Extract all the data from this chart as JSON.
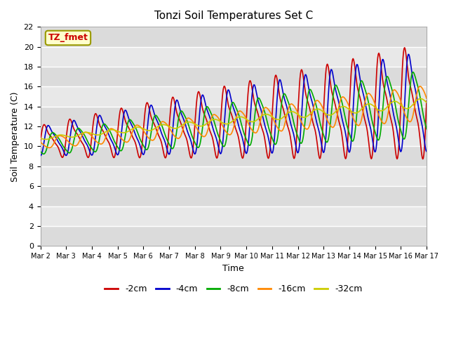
{
  "title": "Tonzi Soil Temperatures Set C",
  "xlabel": "Time",
  "ylabel": "Soil Temperature (C)",
  "ylim": [
    0,
    22
  ],
  "annotation": "TZ_fmet",
  "bg_color": "#e8e8e8",
  "fig_bg_color": "#ffffff",
  "grid_color": "#ffffff",
  "series": {
    "-2cm": {
      "color": "#cc0000",
      "lw": 1.2
    },
    "-4cm": {
      "color": "#0000cc",
      "lw": 1.2
    },
    "-8cm": {
      "color": "#00aa00",
      "lw": 1.2
    },
    "-16cm": {
      "color": "#ff8800",
      "lw": 1.2
    },
    "-32cm": {
      "color": "#cccc00",
      "lw": 1.2
    }
  },
  "xtick_labels": [
    "Mar 2",
    "Mar 3",
    "Mar 4",
    "Mar 5",
    "Mar 6",
    "Mar 7",
    "Mar 8",
    "Mar 9",
    "Mar 10",
    "Mar 11",
    "Mar 12",
    "Mar 13",
    "Mar 14",
    "Mar 15",
    "Mar 16",
    "Mar 17"
  ],
  "ytick_values": [
    0,
    2,
    4,
    6,
    8,
    10,
    12,
    14,
    16,
    18,
    20,
    22
  ]
}
